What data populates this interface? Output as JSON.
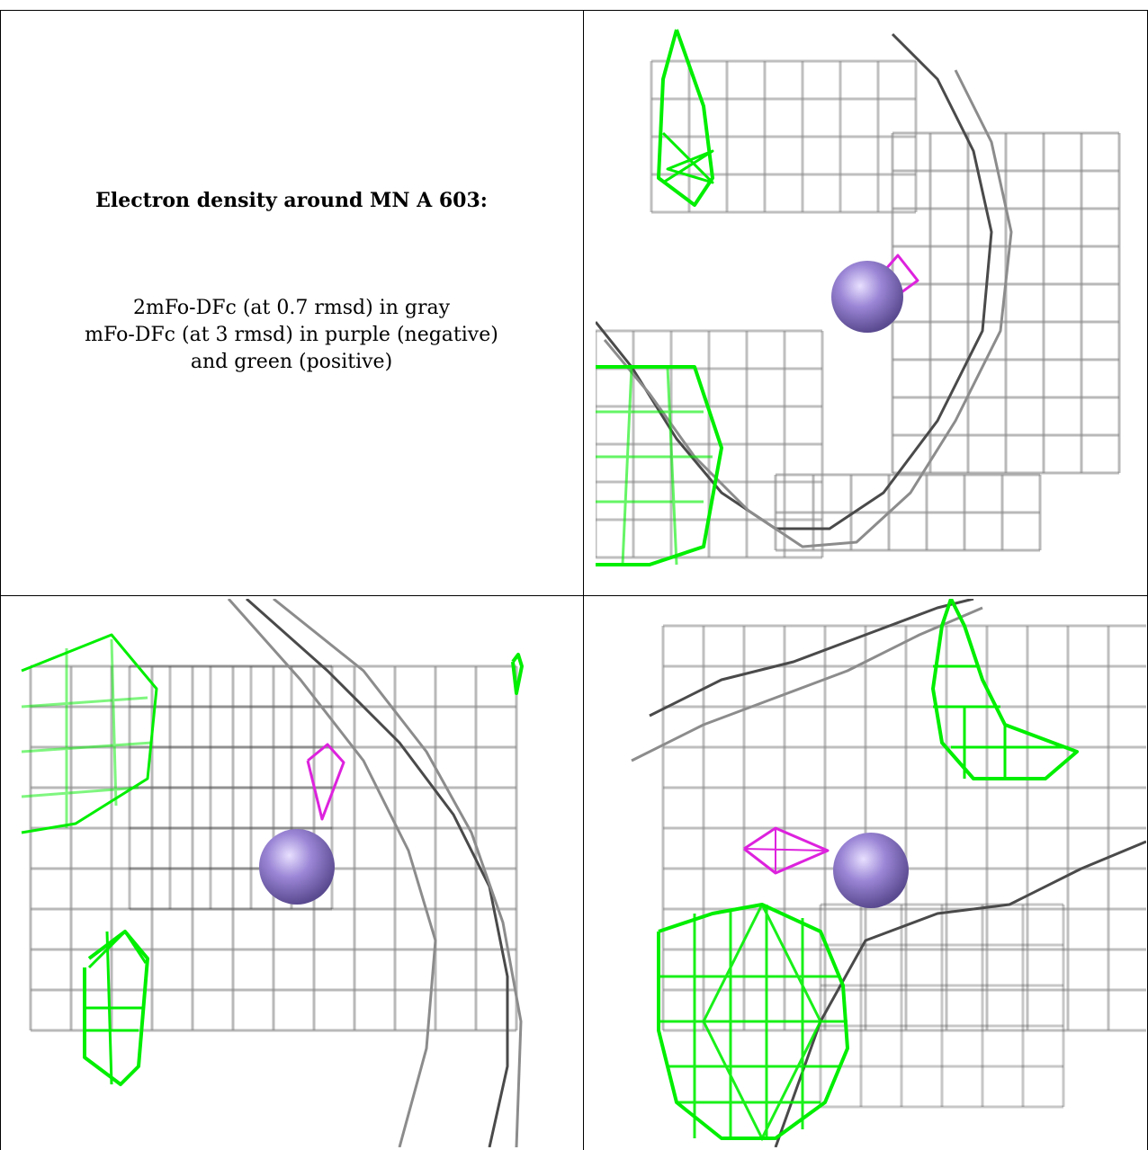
{
  "caption": {
    "title": "Electron density around MN A 603:",
    "line1": "2mFo-DFc (at 0.7 rmsd) in gray",
    "line2": "mFo-DFc (at 3 rmsd) in purple (negative)",
    "line3": "and green (positive)"
  },
  "colors": {
    "gray_mesh": "#8c8c8c",
    "dark_mesh": "#4a4a4a",
    "positive": "#00ee00",
    "negative": "#dd22dd",
    "atom": "#9b86d6"
  },
  "panels": [
    {
      "name": "view-top-right"
    },
    {
      "name": "view-bottom-left"
    },
    {
      "name": "view-bottom-right"
    }
  ]
}
